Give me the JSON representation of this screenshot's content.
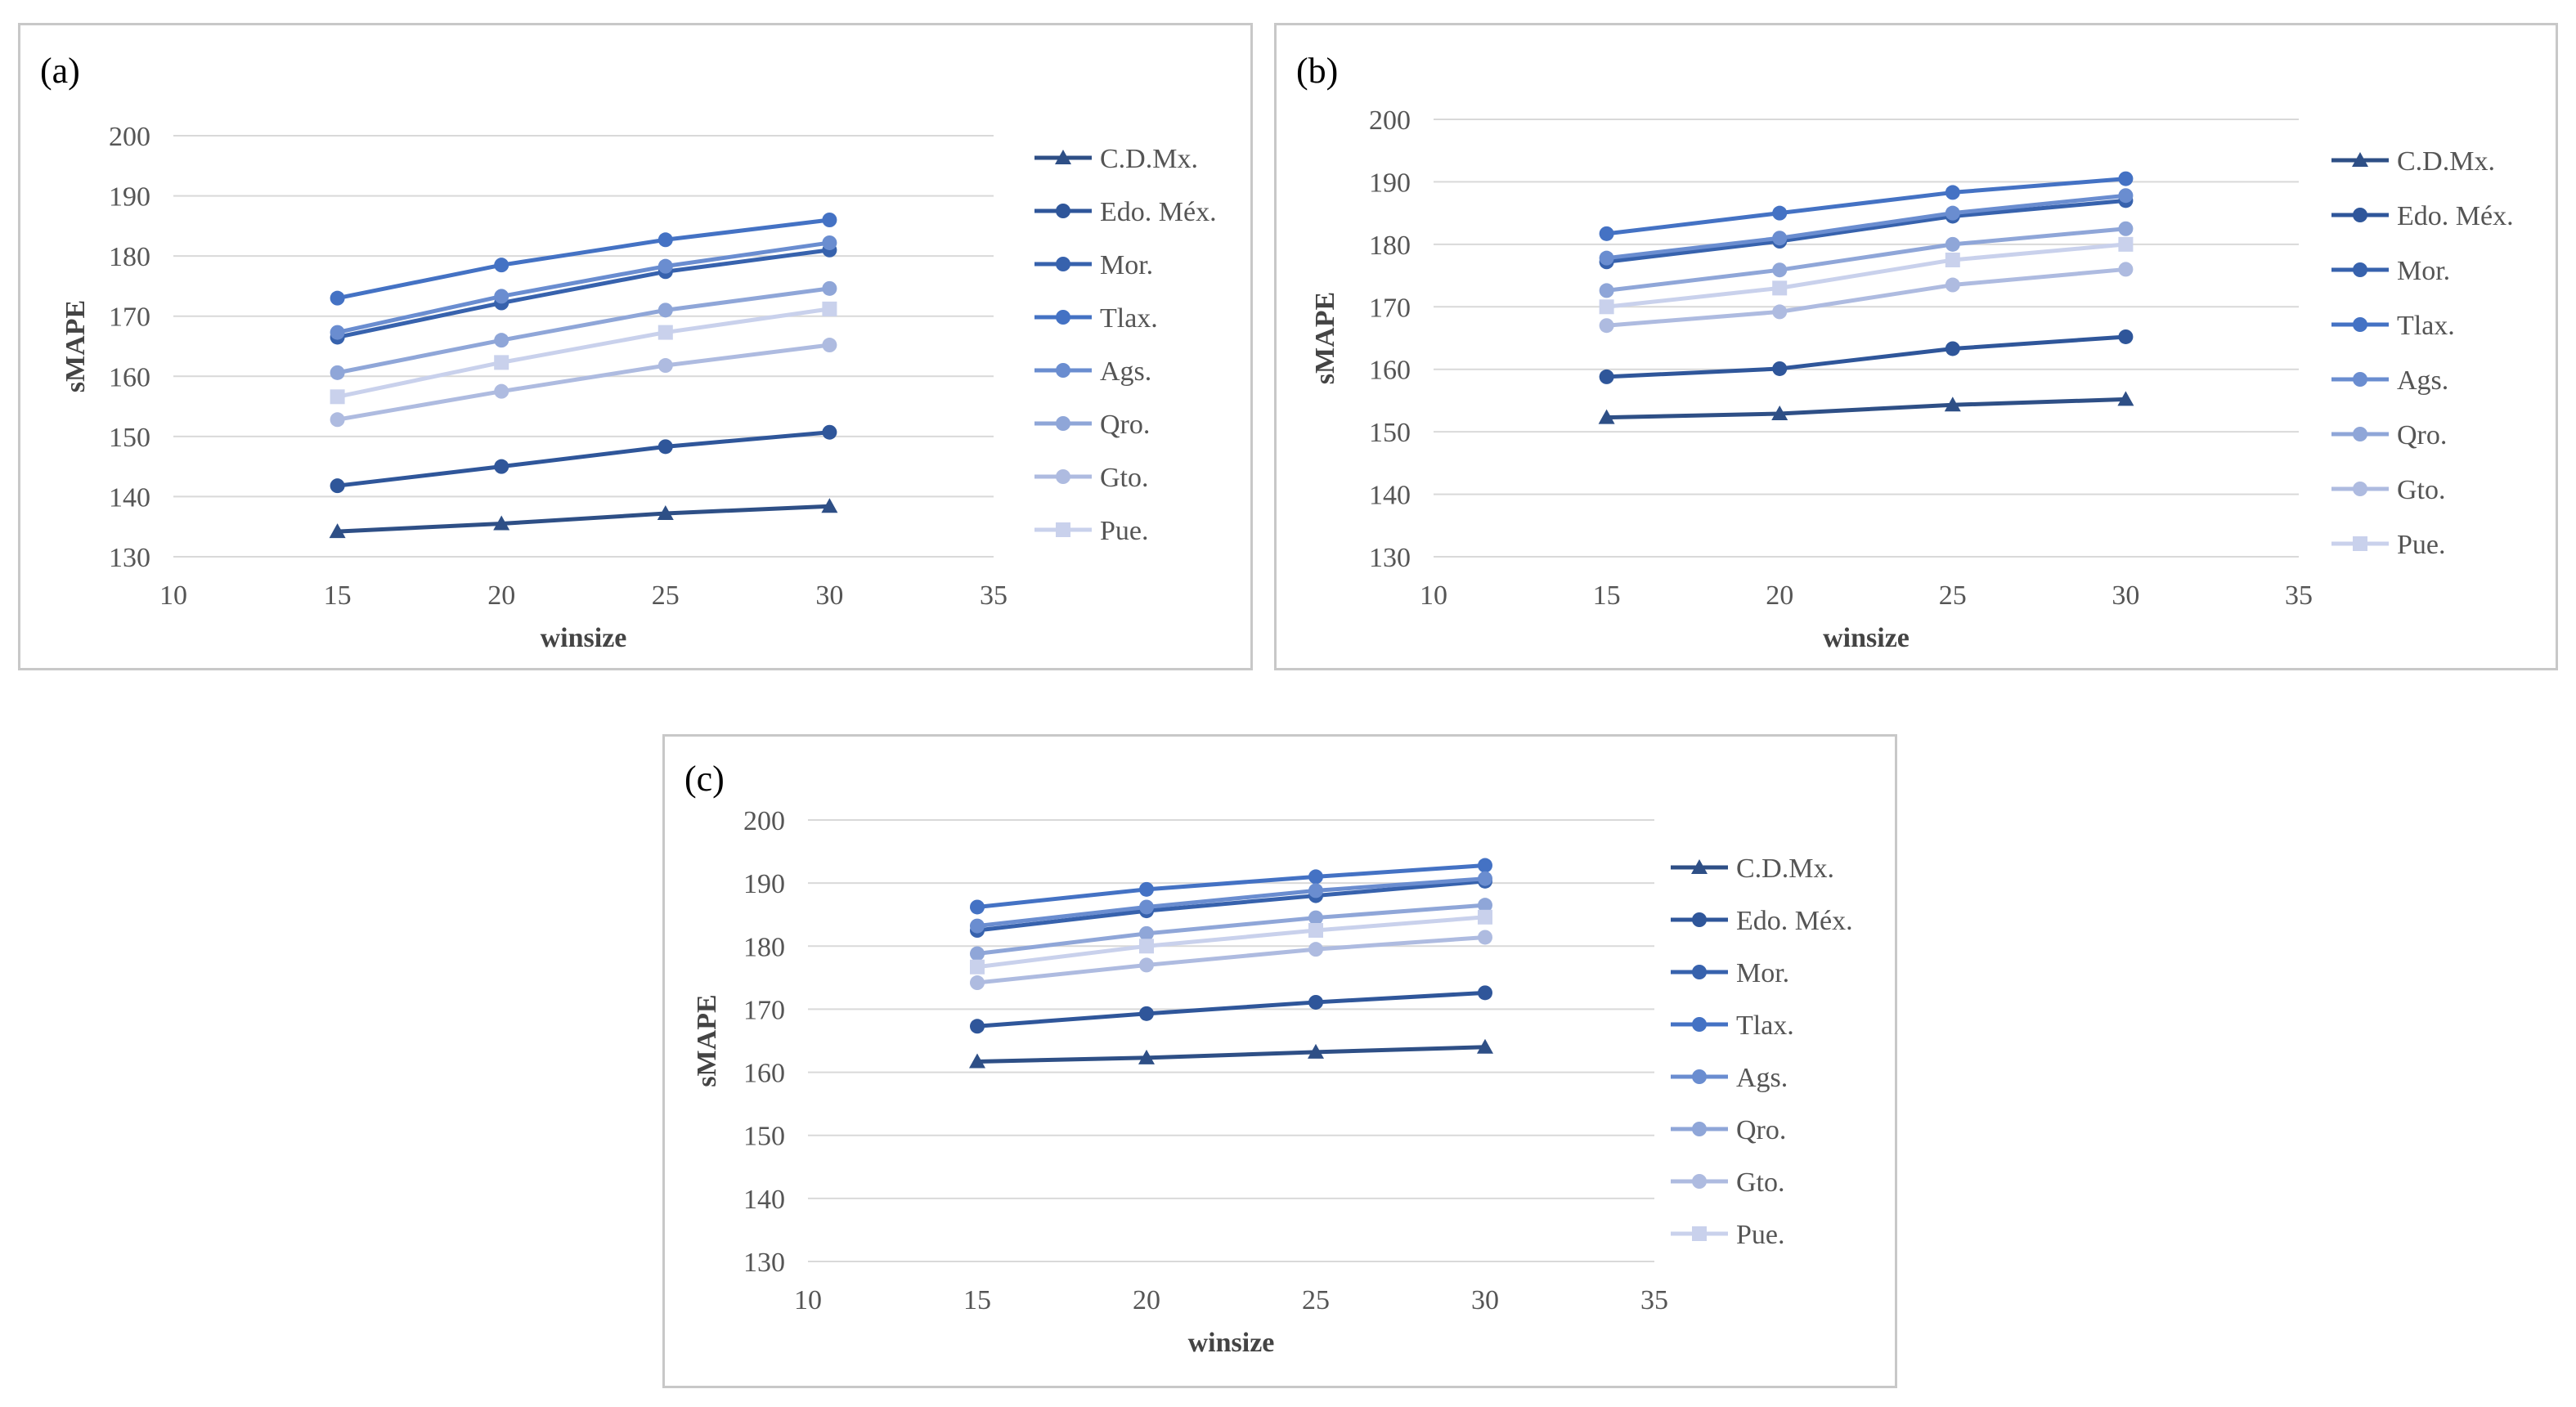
{
  "chart_data": [
    {
      "type": "line",
      "panel_label": "(a)",
      "xlabel": "winsize",
      "ylabel": "sMAPE",
      "xlim": [
        10,
        35
      ],
      "ylim": [
        130,
        200
      ],
      "x_ticks": [
        "10",
        "15",
        "20",
        "25",
        "30",
        "35"
      ],
      "y_ticks": [
        "130",
        "140",
        "150",
        "160",
        "170",
        "180",
        "190",
        "200"
      ],
      "x": [
        15,
        20,
        25,
        30
      ],
      "grid": "horizontal",
      "legend": "right",
      "series": [
        {
          "name": "C.D.Mx.",
          "marker": "triangle",
          "color": "#2e4f86",
          "values": [
            134.2,
            135.5,
            137.2,
            138.4
          ]
        },
        {
          "name": "Edo. Méx.",
          "marker": "circle",
          "color": "#2f569a",
          "values": [
            141.8,
            145.0,
            148.3,
            150.7
          ]
        },
        {
          "name": "Mor.",
          "marker": "circle",
          "color": "#3762ad",
          "values": [
            166.5,
            172.2,
            177.4,
            181.0
          ]
        },
        {
          "name": "Tlax.",
          "marker": "circle",
          "color": "#4472c4",
          "values": [
            173.0,
            178.5,
            182.7,
            186.0
          ]
        },
        {
          "name": "Ags.",
          "marker": "circle",
          "color": "#6a8dd0",
          "values": [
            167.3,
            173.3,
            178.3,
            182.2
          ]
        },
        {
          "name": "Qro.",
          "marker": "circle",
          "color": "#8fa6d8",
          "values": [
            160.6,
            166.0,
            171.0,
            174.6
          ]
        },
        {
          "name": "Gto.",
          "marker": "circle",
          "color": "#aebbe0",
          "values": [
            152.8,
            157.5,
            161.8,
            165.2
          ]
        },
        {
          "name": "Pue.",
          "marker": "square",
          "color": "#c9d1ec",
          "values": [
            156.6,
            162.3,
            167.3,
            171.2
          ]
        }
      ]
    },
    {
      "type": "line",
      "panel_label": "(b)",
      "xlabel": "winsize",
      "ylabel": "sMAPE",
      "xlim": [
        10,
        35
      ],
      "ylim": [
        130,
        200
      ],
      "x_ticks": [
        "10",
        "15",
        "20",
        "25",
        "30",
        "35"
      ],
      "y_ticks": [
        "130",
        "140",
        "150",
        "160",
        "170",
        "180",
        "190",
        "200"
      ],
      "x": [
        15,
        20,
        25,
        30
      ],
      "grid": "horizontal",
      "legend": "right",
      "series": [
        {
          "name": "C.D.Mx.",
          "marker": "triangle",
          "color": "#2e4f86",
          "values": [
            152.3,
            152.9,
            154.3,
            155.2
          ]
        },
        {
          "name": "Edo. Méx.",
          "marker": "circle",
          "color": "#2f569a",
          "values": [
            158.8,
            160.1,
            163.3,
            165.2
          ]
        },
        {
          "name": "Mor.",
          "marker": "circle",
          "color": "#3762ad",
          "values": [
            177.2,
            180.5,
            184.5,
            187.0
          ]
        },
        {
          "name": "Tlax.",
          "marker": "circle",
          "color": "#4472c4",
          "values": [
            181.7,
            185.0,
            188.3,
            190.5
          ]
        },
        {
          "name": "Ags.",
          "marker": "circle",
          "color": "#6a8dd0",
          "values": [
            177.8,
            181.0,
            185.0,
            187.8
          ]
        },
        {
          "name": "Qro.",
          "marker": "circle",
          "color": "#8fa6d8",
          "values": [
            172.6,
            175.9,
            180.0,
            182.5
          ]
        },
        {
          "name": "Gto.",
          "marker": "circle",
          "color": "#aebbe0",
          "values": [
            167.0,
            169.2,
            173.5,
            176.0
          ]
        },
        {
          "name": "Pue.",
          "marker": "square",
          "color": "#c9d1ec",
          "values": [
            170.0,
            173.0,
            177.5,
            180.0
          ]
        }
      ]
    },
    {
      "type": "line",
      "panel_label": "(c)",
      "xlabel": "winsize",
      "ylabel": "sMAPE",
      "xlim": [
        10,
        35
      ],
      "ylim": [
        130,
        200
      ],
      "x_ticks": [
        "10",
        "15",
        "20",
        "25",
        "30",
        "35"
      ],
      "y_ticks": [
        "130",
        "140",
        "150",
        "160",
        "170",
        "180",
        "190",
        "200"
      ],
      "x": [
        15,
        20,
        25,
        30
      ],
      "grid": "horizontal",
      "legend": "right",
      "series": [
        {
          "name": "C.D.Mx.",
          "marker": "triangle",
          "color": "#2e4f86",
          "values": [
            161.7,
            162.3,
            163.2,
            164.0
          ]
        },
        {
          "name": "Edo. Méx.",
          "marker": "circle",
          "color": "#2f569a",
          "values": [
            167.3,
            169.3,
            171.1,
            172.6
          ]
        },
        {
          "name": "Mor.",
          "marker": "circle",
          "color": "#3762ad",
          "values": [
            182.5,
            185.6,
            188.0,
            190.3
          ]
        },
        {
          "name": "Tlax.",
          "marker": "circle",
          "color": "#4472c4",
          "values": [
            186.2,
            189.0,
            191.0,
            192.8
          ]
        },
        {
          "name": "Ags.",
          "marker": "circle",
          "color": "#6a8dd0",
          "values": [
            183.2,
            186.2,
            188.8,
            190.7
          ]
        },
        {
          "name": "Qro.",
          "marker": "circle",
          "color": "#8fa6d8",
          "values": [
            178.8,
            182.0,
            184.5,
            186.5
          ]
        },
        {
          "name": "Gto.",
          "marker": "circle",
          "color": "#aebbe0",
          "values": [
            174.2,
            177.0,
            179.5,
            181.4
          ]
        },
        {
          "name": "Pue.",
          "marker": "square",
          "color": "#c9d1ec",
          "values": [
            176.7,
            180.0,
            182.5,
            184.6
          ]
        }
      ]
    }
  ]
}
